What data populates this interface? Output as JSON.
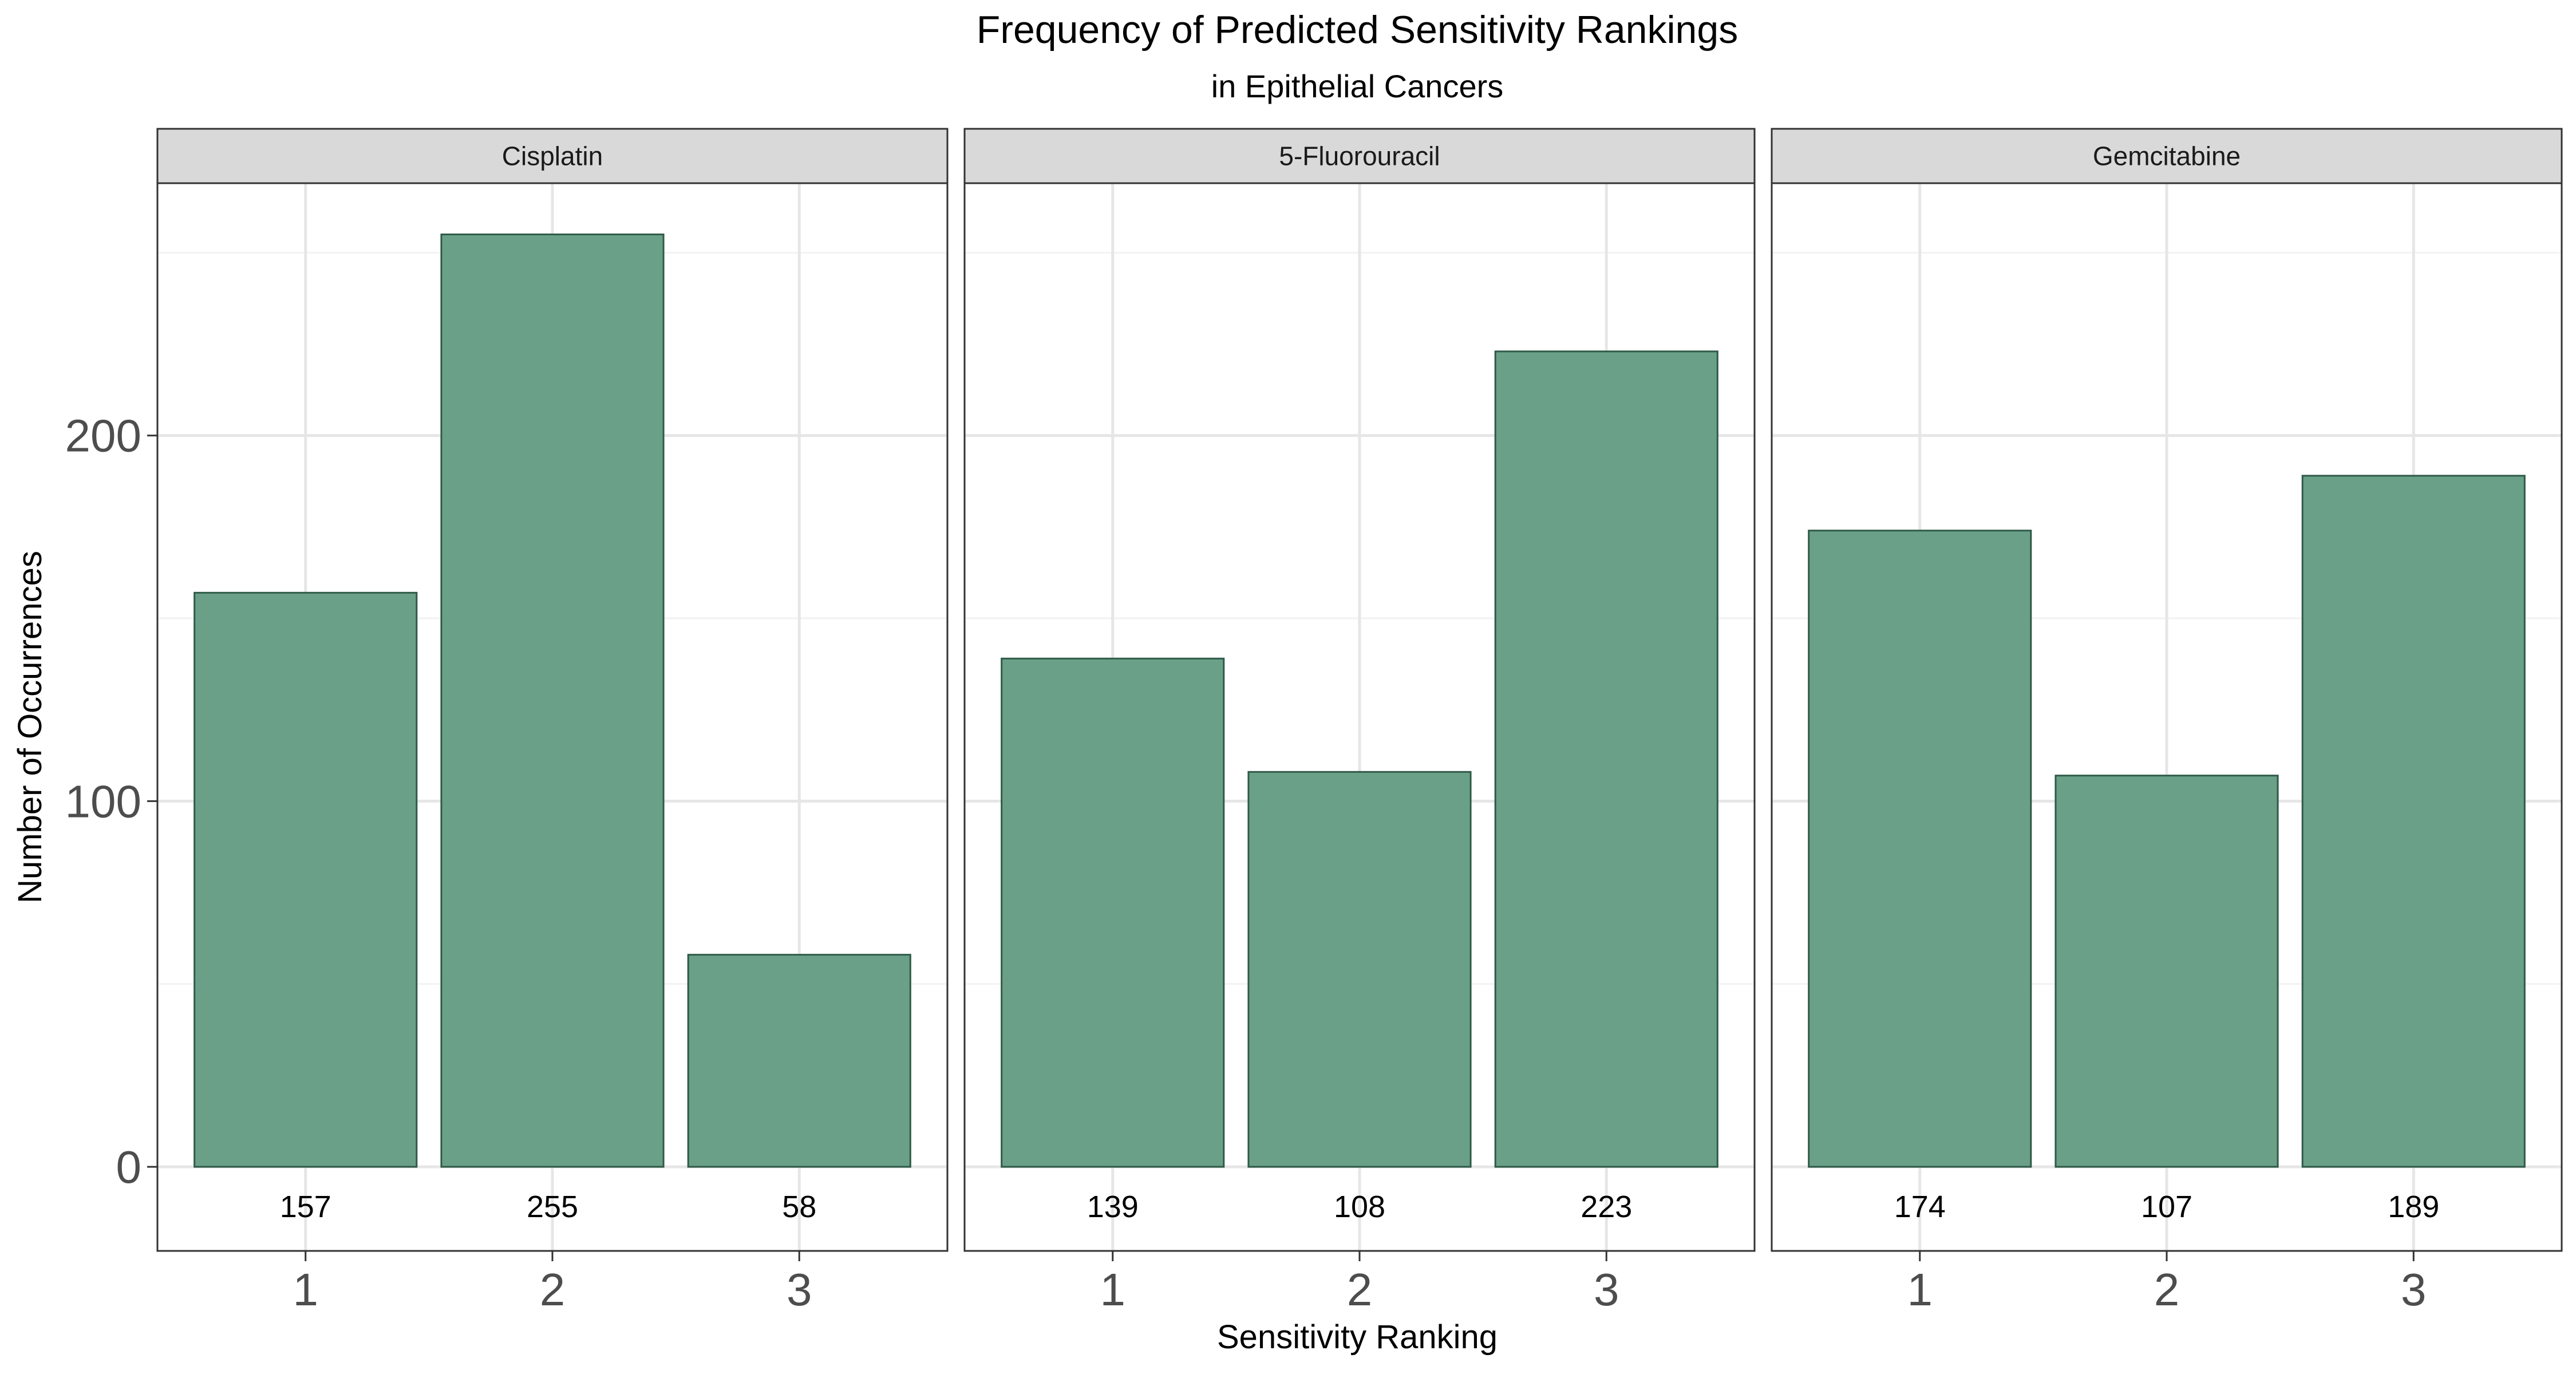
{
  "chart_data": {
    "type": "bar",
    "title": "Frequency of Predicted Sensitivity Rankings",
    "subtitle": "in Epithelial Cancers",
    "xlabel": "Sensitivity Ranking",
    "ylabel": "Number of Occurrences",
    "categories": [
      "1",
      "2",
      "3"
    ],
    "y_ticks": [
      "0",
      "100",
      "200"
    ],
    "ylim": [
      -23,
      269
    ],
    "grid": true,
    "bar_color": "#6aa088",
    "bar_border_color": "#2f5a48",
    "facets": [
      {
        "name": "Cisplatin",
        "values": [
          157,
          255,
          58
        ],
        "labels": [
          "157",
          "255",
          "58"
        ]
      },
      {
        "name": "5-Fluorouracil",
        "values": [
          139,
          108,
          223
        ],
        "labels": [
          "139",
          "108",
          "223"
        ]
      },
      {
        "name": "Gemcitabine",
        "values": [
          174,
          107,
          189
        ],
        "labels": [
          "174",
          "107",
          "189"
        ]
      }
    ]
  }
}
